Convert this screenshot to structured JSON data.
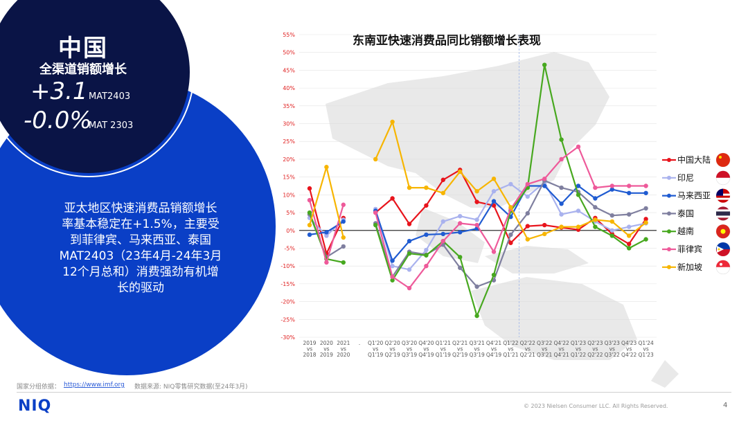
{
  "kpi": {
    "title": "中国",
    "subtitle": "全渠道销额增长",
    "value1": "+3.1",
    "period1": "MAT2403",
    "value2": "-0.0%",
    "period2": "MAT 2303"
  },
  "description": [
    "亚太地区快速消费品销额增长",
    "率基本稳定在+1.5%，主要受",
    "到菲律宾、马来西亚、泰国",
    "MAT2403（23年4月-24年3月",
    "12个月总和）消费强劲有机增",
    "长的驱动"
  ],
  "footer": {
    "source_label": "国家分组依据：",
    "source_link": "https://www.imf.org",
    "data_source": "数据来源: NIQ零售研究数据(至24年3月)",
    "logo": "NIQ",
    "copyright": "© 2023  Nielsen Consumer LLC. All Rights Reserved.",
    "page": "4"
  },
  "chart_data": {
    "type": "line",
    "title": "东南亚快速消费品同比销额增长表现",
    "ylim": [
      -30,
      55
    ],
    "ytick_step": 5,
    "ytick_suffix": "%",
    "gap_label": ".",
    "grid": true,
    "legend_position": "right",
    "x": [
      {
        "top": "2019",
        "mid": "vs",
        "bot": "2018"
      },
      {
        "top": "2020",
        "mid": "vs",
        "bot": "2019"
      },
      {
        "top": "2021",
        "mid": "vs",
        "bot": "2020"
      },
      {
        "top": "Q1'20",
        "mid": "vs",
        "bot": "Q1'19"
      },
      {
        "top": "Q2'20",
        "mid": "vs",
        "bot": "Q2'19"
      },
      {
        "top": "Q3'20",
        "mid": "vs",
        "bot": "Q3'19"
      },
      {
        "top": "Q4'20",
        "mid": "vs",
        "bot": "Q4'19"
      },
      {
        "top": "Q1'21",
        "mid": "vs",
        "bot": "Q1'19"
      },
      {
        "top": "Q2'21",
        "mid": "vs",
        "bot": "Q2'19"
      },
      {
        "top": "Q3'21",
        "mid": "vs",
        "bot": "Q3'19"
      },
      {
        "top": "Q4'21",
        "mid": "vs",
        "bot": "Q4'19"
      },
      {
        "top": "Q1'22",
        "mid": "vs",
        "bot": "Q1'21"
      },
      {
        "top": "Q2'22",
        "mid": "vs",
        "bot": "Q2'21"
      },
      {
        "top": "Q3'22",
        "mid": "vs",
        "bot": "Q3'21"
      },
      {
        "top": "Q4'22",
        "mid": "vs",
        "bot": "Q4'21"
      },
      {
        "top": "Q1'23",
        "mid": "vs",
        "bot": "Q1'22"
      },
      {
        "top": "Q2'23",
        "mid": "vs",
        "bot": "Q2'22"
      },
      {
        "top": "Q3'23",
        "mid": "vs",
        "bot": "Q3'22"
      },
      {
        "top": "Q4'23",
        "mid": "vs",
        "bot": "Q4'22"
      },
      {
        "top": "Q1'24",
        "mid": "vs",
        "bot": "Q1'23"
      }
    ],
    "series": [
      {
        "name": "中国大陆",
        "color": "#e8141c",
        "flag": "china-flag-icon",
        "values": [
          11.8,
          -6.5,
          3.5,
          5.0,
          9.0,
          1.8,
          7.0,
          14.2,
          17.0,
          8.0,
          7.0,
          -3.5,
          1.2,
          1.5,
          0.8,
          0.2,
          3.5,
          -1.0,
          -3.8,
          3.2
        ]
      },
      {
        "name": "印尼",
        "color": "#a9b2ee",
        "flag": "indonesia-flag-icon",
        "values": [
          3.5,
          -1.5,
          3.0,
          6.0,
          -10.0,
          -11.0,
          -5.5,
          2.5,
          4.0,
          3.0,
          11.0,
          13.0,
          9.5,
          13.5,
          4.5,
          5.5,
          2.5,
          0.0,
          1.0,
          2.0
        ]
      },
      {
        "name": "马来西亚",
        "color": "#1f5bd1",
        "flag": "malaysia-flag-icon",
        "values": [
          -1.2,
          -0.5,
          2.5,
          5.5,
          -8.5,
          -3.0,
          -1.2,
          -1.0,
          -0.5,
          0.5,
          8.2,
          3.8,
          12.5,
          12.5,
          7.5,
          12.5,
          9.0,
          11.5,
          10.5,
          10.5
        ]
      },
      {
        "name": "泰国",
        "color": "#7f7f9f",
        "flag": "thailand-flag-icon",
        "values": [
          4.5,
          -7.5,
          -4.5,
          2.0,
          -13.0,
          -6.0,
          -6.8,
          -4.0,
          -10.5,
          -15.8,
          -14.0,
          -1.2,
          4.8,
          14.0,
          12.0,
          10.8,
          6.5,
          4.2,
          4.5,
          6.2
        ]
      },
      {
        "name": "越南",
        "color": "#47a81f",
        "flag": "vietnam-flag-icon",
        "values": [
          5.0,
          -8.0,
          -9.0,
          1.5,
          -14.0,
          -6.5,
          -7.0,
          -3.0,
          -7.5,
          -24.0,
          -12.5,
          5.5,
          12.0,
          46.5,
          25.5,
          10.0,
          1.0,
          -1.5,
          -5.0,
          -2.5
        ]
      },
      {
        "name": "菲律宾",
        "color": "#ee5a9a",
        "flag": "philippines-flag-icon",
        "values": [
          8.5,
          -9.0,
          7.2,
          5.0,
          -13.0,
          -16.2,
          -10.0,
          -3.0,
          2.0,
          1.5,
          -6.0,
          6.0,
          13.0,
          14.5,
          20.0,
          23.5,
          12.0,
          12.5,
          12.5,
          12.5
        ]
      },
      {
        "name": "新加坡",
        "color": "#f7b500",
        "flag": "singapore-flag-icon",
        "values": [
          1.5,
          17.8,
          -2.0,
          20.0,
          30.5,
          12.0,
          12.0,
          10.5,
          16.5,
          11.0,
          14.5,
          6.5,
          -2.5,
          -1.0,
          1.0,
          1.0,
          3.0,
          2.5,
          -1.5,
          2.2
        ]
      }
    ]
  }
}
